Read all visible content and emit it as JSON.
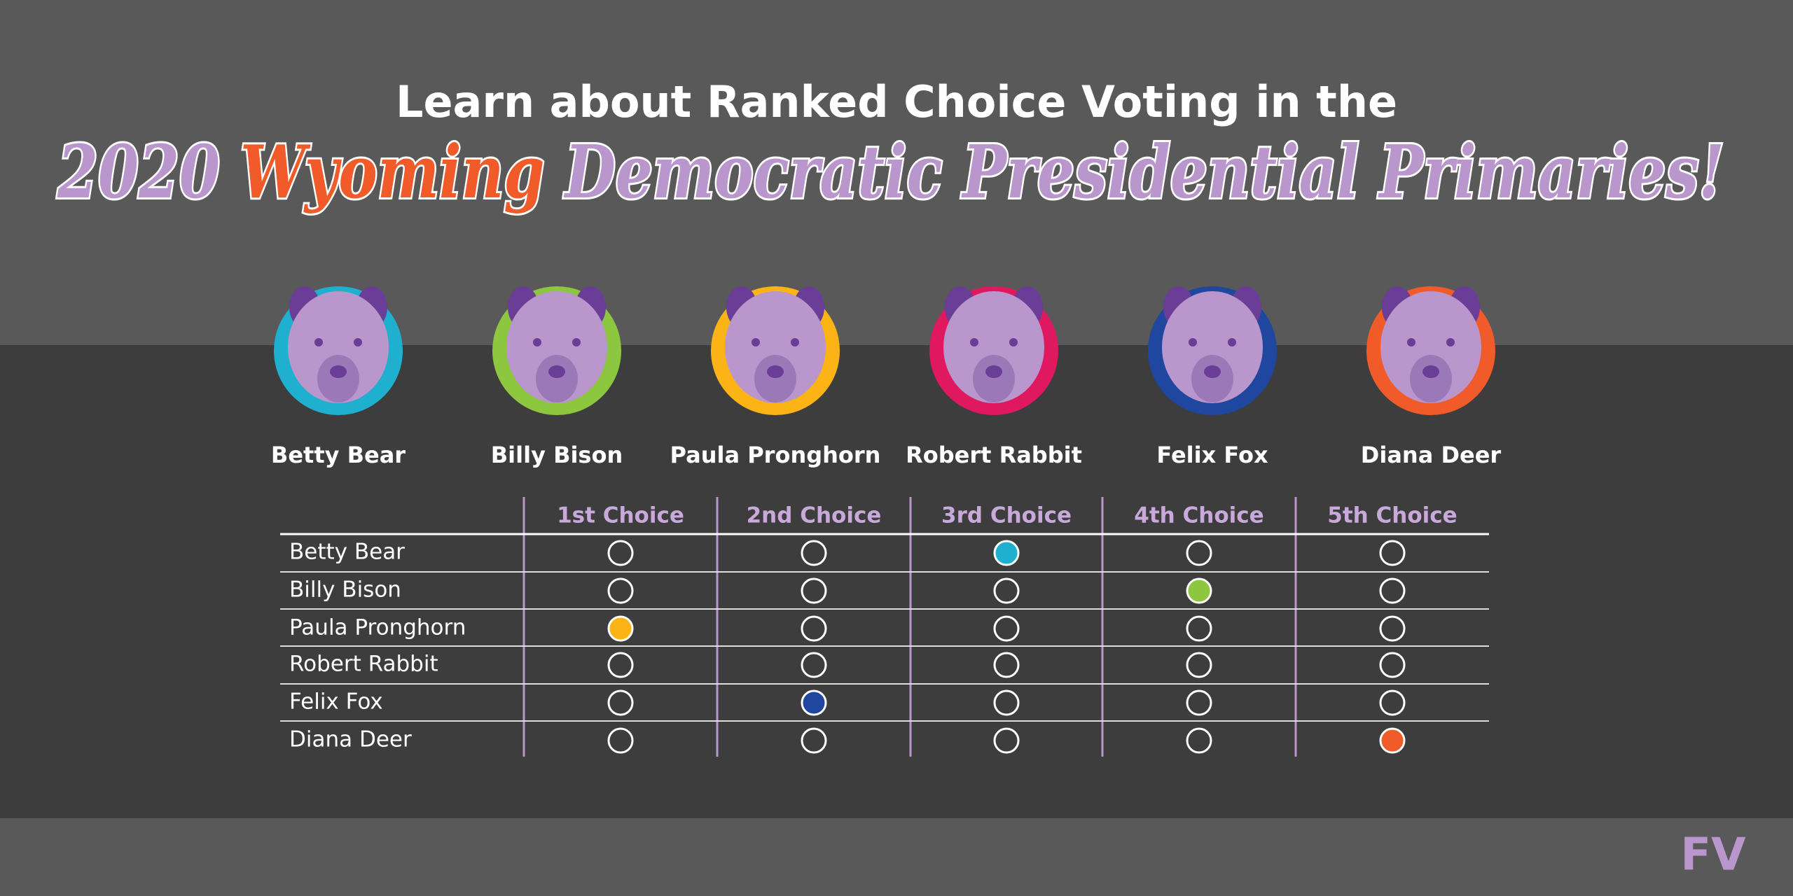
{
  "header": {
    "line1": "Learn about Ranked Choice Voting in the",
    "line2": [
      {
        "text": "2020 ",
        "color": "#b996cc"
      },
      {
        "text": "Wyoming",
        "color": "#f15a29"
      },
      {
        "text": " Democratic Presidential Primaries!",
        "color": "#b996cc"
      }
    ]
  },
  "candidates": [
    {
      "name": "Betty Bear",
      "color": "#1fb0d0"
    },
    {
      "name": "Billy Bison",
      "color": "#8dc63f"
    },
    {
      "name": "Paula Pronghorn",
      "color": "#fbb315"
    },
    {
      "name": "Robert Rabbit",
      "color": "#e0185f"
    },
    {
      "name": "Felix Fox",
      "color": "#1f47a0"
    },
    {
      "name": "Diana Deer",
      "color": "#f15a29"
    }
  ],
  "ballot": {
    "columns": [
      "1st Choice",
      "2nd Choice",
      "3rd Choice",
      "4th Choice",
      "5th Choice"
    ],
    "rows": [
      {
        "name": "Betty Bear",
        "choice": 3
      },
      {
        "name": "Billy Bison",
        "choice": 4
      },
      {
        "name": "Paula Pronghorn",
        "choice": 1
      },
      {
        "name": "Robert Rabbit",
        "choice": null
      },
      {
        "name": "Felix Fox",
        "choice": 2
      },
      {
        "name": "Diana Deer",
        "choice": 5
      }
    ]
  },
  "logo": "FV"
}
